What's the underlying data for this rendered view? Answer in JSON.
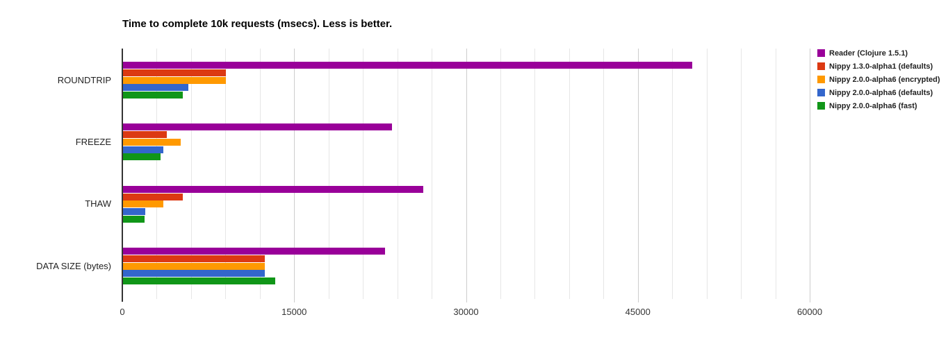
{
  "chart_data": {
    "type": "bar",
    "orientation": "horizontal",
    "title": "Time to complete 10k requests (msecs). Less is better.",
    "categories": [
      "ROUNDTRIP",
      "FREEZE",
      "THAW",
      "DATA SIZE (bytes)"
    ],
    "series": [
      {
        "name": "Reader (Clojure 1.5.1)",
        "color": "#990099",
        "values": [
          49700,
          23500,
          26200,
          22900
        ]
      },
      {
        "name": "Nippy 1.3.0-alpha1 (defaults)",
        "color": "#DC3912",
        "values": [
          9000,
          3800,
          5200,
          12350
        ]
      },
      {
        "name": "Nippy 2.0.0-alpha6 (encrypted)",
        "color": "#FF9900",
        "values": [
          8950,
          5050,
          3530,
          12350
        ]
      },
      {
        "name": "Nippy 2.0.0-alpha6 (defaults)",
        "color": "#3366CC",
        "values": [
          5700,
          3530,
          1950,
          12350
        ]
      },
      {
        "name": "Nippy 2.0.0-alpha6 (fast)",
        "color": "#109618",
        "values": [
          5200,
          3250,
          1860,
          13300
        ]
      }
    ],
    "xlim": [
      0,
      60000
    ],
    "x_ticks": [
      0,
      15000,
      30000,
      45000,
      60000
    ],
    "x_tick_labels": [
      "0",
      "15000",
      "30000",
      "45000",
      "60000"
    ],
    "minor_grid_step": 3000,
    "grid": true,
    "legend_position": "top-right",
    "background_color": "#ffffff",
    "gridline_color_minor": "#e6e6e6",
    "gridline_color_major": "#cccccc",
    "baseline_color": "#333333"
  }
}
